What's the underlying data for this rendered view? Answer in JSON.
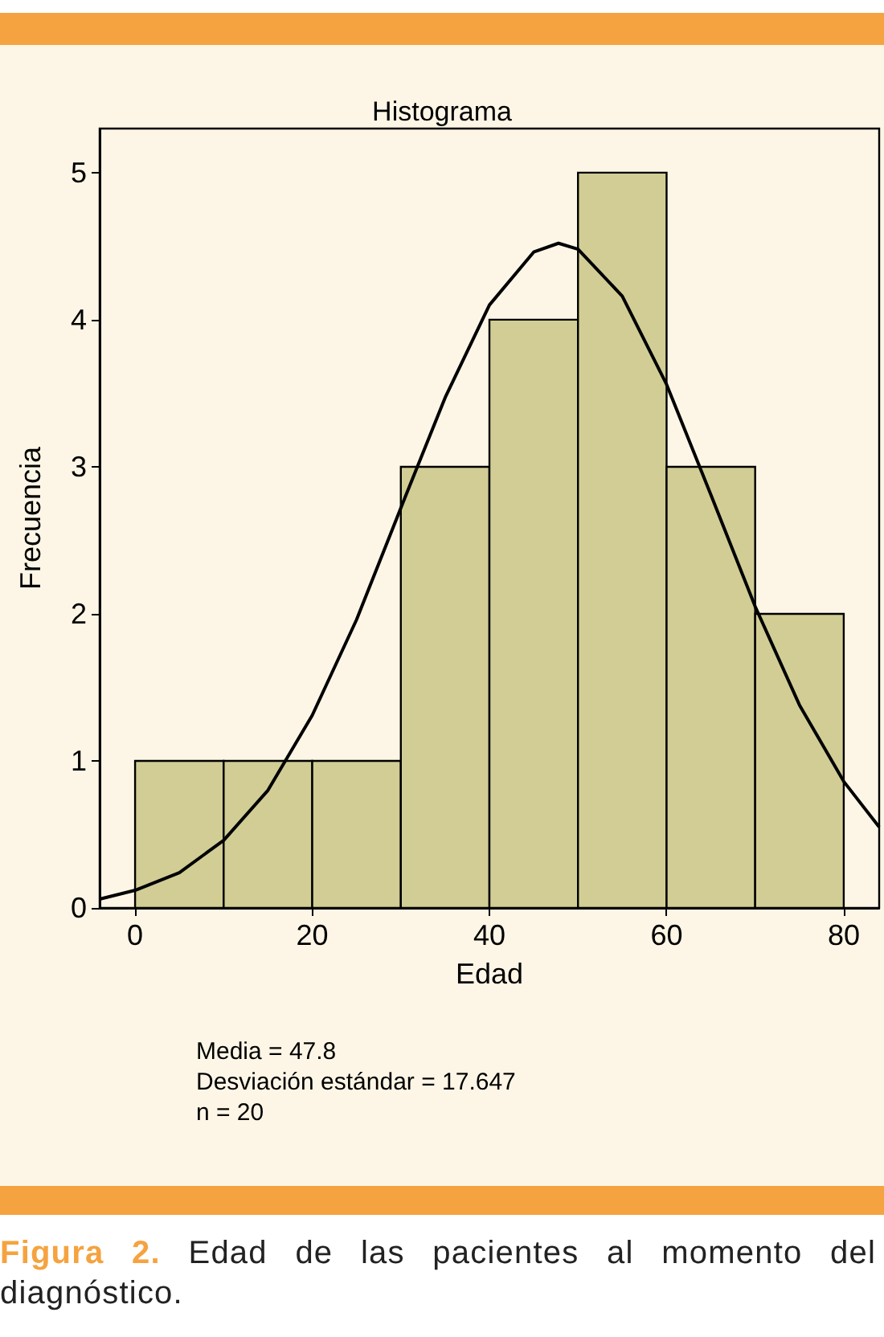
{
  "chart_data": {
    "type": "histogram",
    "title": "Histograma",
    "xlabel": "Edad",
    "ylabel": "Frecuencia",
    "bins": [
      0,
      10,
      20,
      30,
      40,
      50,
      60,
      70,
      80
    ],
    "values": [
      1,
      1,
      1,
      3,
      4,
      5,
      3,
      2
    ],
    "color": "#d1cd95",
    "series": [
      {
        "type": "line",
        "color": "#000000",
        "x": [
          -4,
          0,
          5,
          10,
          15,
          20,
          25,
          30,
          35,
          40,
          45,
          47.8,
          50,
          55,
          60,
          65,
          70,
          75,
          80,
          84
        ],
        "values": [
          0.06,
          0.12,
          0.24,
          0.46,
          0.8,
          1.31,
          1.96,
          2.72,
          3.47,
          4.1,
          4.46,
          4.52,
          4.48,
          4.16,
          3.56,
          2.81,
          2.05,
          1.38,
          0.86,
          0.55
        ]
      }
    ],
    "xlim": [
      -4,
      84
    ],
    "xticks": [
      0,
      20,
      40,
      60,
      80
    ],
    "ylim": [
      0,
      5.3
    ],
    "yticks": [
      0,
      1,
      2,
      3,
      4,
      5
    ],
    "grid": false,
    "annotations": [
      "Media = 47.8",
      "Desviación estándar = 17.647",
      "n = 20",
      "Figura 2. Edad de las pacientes al momento del diagnóstico."
    ]
  }
}
